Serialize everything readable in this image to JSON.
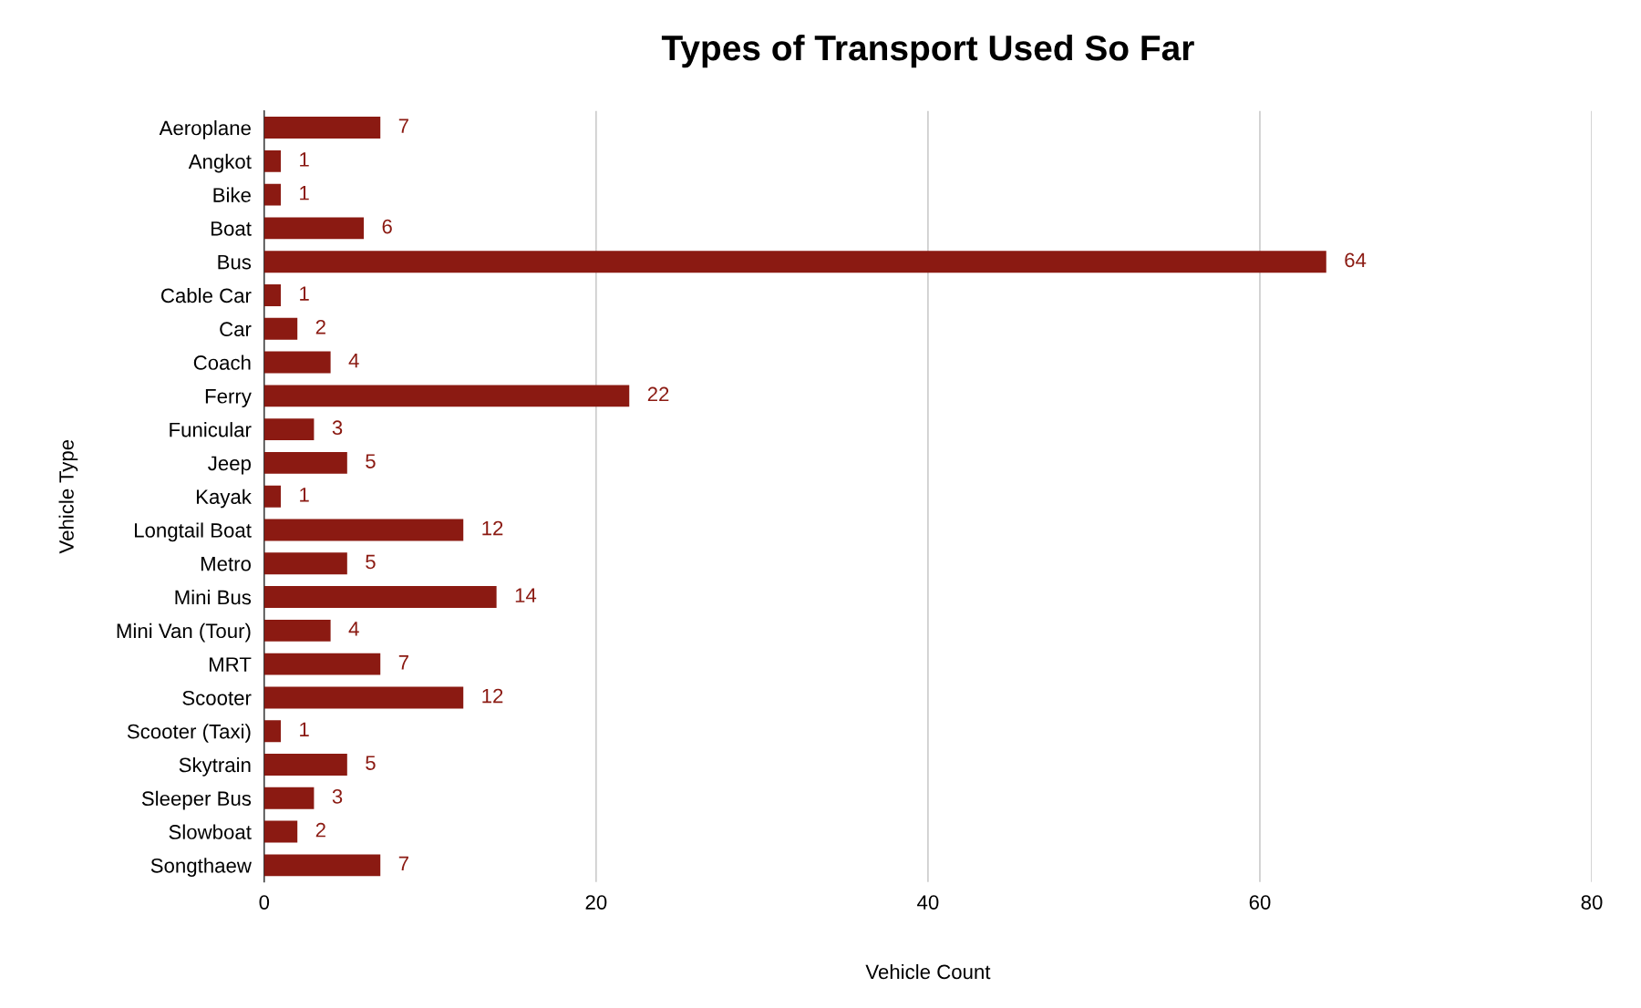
{
  "chart_data": {
    "type": "bar",
    "orientation": "horizontal",
    "title": "Types of Transport Used So Far",
    "xlabel": "Vehicle Count",
    "ylabel": "Vehicle Type",
    "categories": [
      "Aeroplane",
      "Angkot",
      "Bike",
      "Boat",
      "Bus",
      "Cable Car",
      "Car",
      "Coach",
      "Ferry",
      "Funicular",
      "Jeep",
      "Kayak",
      "Longtail Boat",
      "Metro",
      "Mini Bus",
      "Mini Van (Tour)",
      "MRT",
      "Scooter",
      "Scooter (Taxi)",
      "Skytrain",
      "Sleeper Bus",
      "Slowboat",
      "Songthaew"
    ],
    "values": [
      7,
      1,
      1,
      6,
      64,
      1,
      2,
      4,
      22,
      3,
      5,
      1,
      12,
      5,
      14,
      4,
      7,
      12,
      1,
      5,
      3,
      2,
      7
    ],
    "color": "#8b1a12",
    "xlim": [
      0,
      80
    ],
    "xticks": [
      0,
      20,
      40,
      60,
      80
    ],
    "grid": "x",
    "data_labels": true,
    "legend": false
  }
}
